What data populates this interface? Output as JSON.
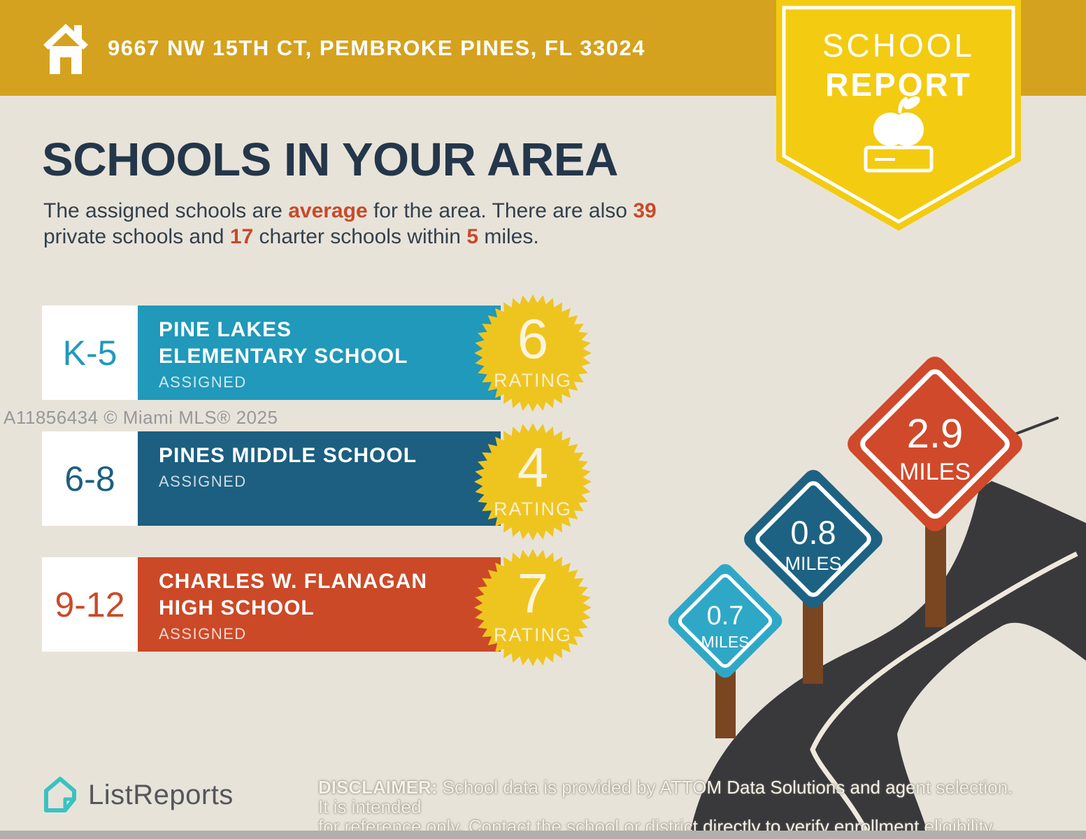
{
  "header": {
    "address": "9667 NW 15TH CT, PEMBROKE PINES, FL 33024"
  },
  "ribbon": {
    "line1": "SCHOOL",
    "line2": "REPORT"
  },
  "title": "SCHOOLS IN YOUR AREA",
  "subtitle": {
    "line1": {
      "t1": "The assigned schools are ",
      "b1": "average",
      "t2": " for the area. There are also ",
      "b2": "39"
    },
    "line2": {
      "t1": "private schools and ",
      "b1": "17",
      "t2": " charter schools within ",
      "b2": "5",
      "t3": " miles."
    }
  },
  "watermark": "A11856434 © Miami MLS® 2025",
  "schools": [
    {
      "grades": "K-5",
      "name_lines": [
        "PINE LAKES",
        "ELEMENTARY SCHOOL"
      ],
      "status": "ASSIGNED",
      "rating": "6",
      "rating_label": "RATING",
      "color": "#2099BA"
    },
    {
      "grades": "6-8",
      "name_lines": [
        "PINES MIDDLE SCHOOL"
      ],
      "status": "ASSIGNED",
      "rating": "4",
      "rating_label": "RATING",
      "color": "#1C5F80"
    },
    {
      "grades": "9-12",
      "name_lines": [
        "CHARLES W. FLANAGAN",
        "HIGH SCHOOL"
      ],
      "status": "ASSIGNED",
      "rating": "7",
      "rating_label": "RATING",
      "color": "#CB4927"
    }
  ],
  "signs": [
    {
      "distance": "0.7",
      "unit": "MILES",
      "color": "#2FA8C7"
    },
    {
      "distance": "0.8",
      "unit": "MILES",
      "color": "#1D6283"
    },
    {
      "distance": "2.9",
      "unit": "MILES",
      "color": "#D0492B"
    }
  ],
  "footer": {
    "brand": "ListReports",
    "disclaimer_label": "DISCLAIMER:",
    "disclaimer_rest1": " School data is provided by ATTOM Data Solutions and agent selection. It is intended",
    "disclaimer_line2": "for reference only. Contact the school or district directly to verify enrollment eligibility."
  },
  "colors": {
    "banner_gold": "#D4A21E",
    "ribbon_yellow": "#F3CB11",
    "background_beige": "#E8E3D9",
    "title_navy": "#24374A",
    "accent_red": "#C8492A",
    "starburst_yellow": "#EEC51F",
    "road_dark": "#39393C",
    "post_brown": "#7A4521",
    "brand_teal": "#3BC2C3"
  }
}
